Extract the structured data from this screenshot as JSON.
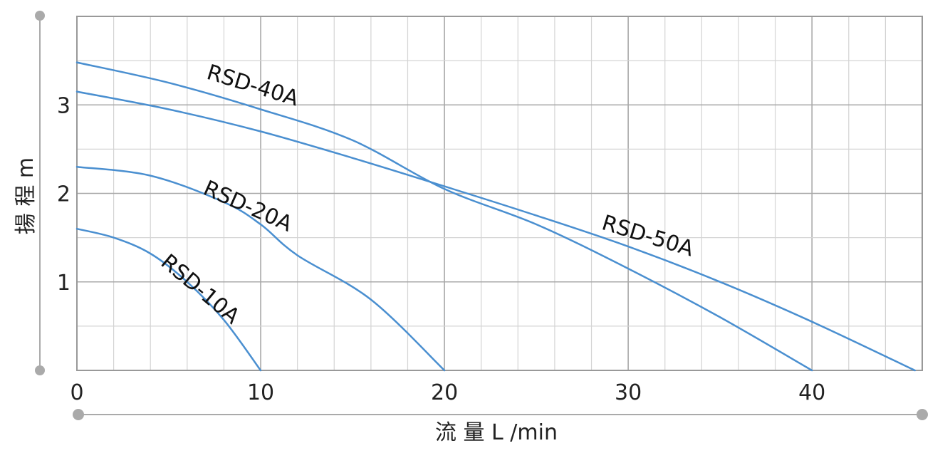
{
  "chart_data": {
    "type": "line",
    "xlabel": "流 量 L /min",
    "ylabel": "揚 程 m",
    "xlim": [
      0,
      46
    ],
    "ylim": [
      0,
      4
    ],
    "x_ticks": [
      0,
      10,
      20,
      30,
      40
    ],
    "y_ticks": [
      1,
      2,
      3
    ],
    "grid": true,
    "colors": {
      "line": "#4a8fd0",
      "frame": "#999999",
      "grid_minor": "#d4d4d4",
      "grid_major": "#a8a8a8",
      "marker": "#aaaaaa"
    },
    "series": [
      {
        "name": "RSD-10A",
        "x": [
          0,
          2,
          4,
          6,
          8,
          10
        ],
        "y": [
          1.6,
          1.5,
          1.32,
          1.0,
          0.57,
          0
        ]
      },
      {
        "name": "RSD-20A",
        "x": [
          0,
          4,
          8,
          10,
          12,
          16,
          20
        ],
        "y": [
          2.3,
          2.2,
          1.9,
          1.65,
          1.3,
          0.8,
          0
        ]
      },
      {
        "name": "RSD-40A",
        "x": [
          0,
          5,
          10,
          15,
          20,
          25,
          30,
          35,
          40
        ],
        "y": [
          3.48,
          3.25,
          2.95,
          2.6,
          2.05,
          1.65,
          1.15,
          0.6,
          0
        ]
      },
      {
        "name": "RSD-50A",
        "x": [
          0,
          5,
          10,
          15,
          20,
          25,
          30,
          35,
          40,
          45.6
        ],
        "y": [
          3.15,
          2.95,
          2.7,
          2.4,
          2.08,
          1.75,
          1.4,
          1.0,
          0.55,
          0
        ]
      }
    ]
  }
}
